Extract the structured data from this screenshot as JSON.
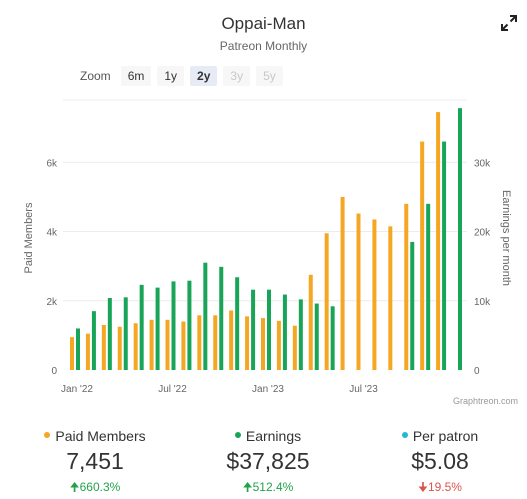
{
  "header": {
    "title": "Oppai-Man",
    "subtitle": "Patreon Monthly"
  },
  "zoom": {
    "label": "Zoom",
    "buttons": [
      {
        "label": "6m",
        "state": "normal"
      },
      {
        "label": "1y",
        "state": "normal"
      },
      {
        "label": "2y",
        "state": "active"
      },
      {
        "label": "3y",
        "state": "disabled"
      },
      {
        "label": "5y",
        "state": "disabled"
      }
    ]
  },
  "credit": "Graphtreon.com",
  "colors": {
    "members": "#f5a623",
    "earnings": "#18a558",
    "per_patron": "#23b7d6",
    "up": "#22a34a",
    "down": "#d9534f"
  },
  "chart_data": {
    "type": "bar",
    "x_tick_labels": [
      "Jan '22",
      "Jul '22",
      "Jan '23",
      "Jul '23"
    ],
    "x_tick_category_index": [
      0,
      6,
      12,
      18
    ],
    "ylabel_left": "Paid Members",
    "ylabel_right": "Earnings per month",
    "yticks_left": [
      "0",
      "2k",
      "4k",
      "6k"
    ],
    "yticks_left_values": [
      0,
      2000,
      4000,
      6000
    ],
    "yticks_right": [
      "0",
      "10k",
      "20k",
      "30k"
    ],
    "yticks_right_values": [
      0,
      10000,
      20000,
      30000
    ],
    "ylim_left": [
      0,
      7800
    ],
    "ylim_right": [
      0,
      39000
    ],
    "categories": [
      "2022-01",
      "2022-02",
      "2022-03",
      "2022-04",
      "2022-05",
      "2022-06",
      "2022-07",
      "2022-08",
      "2022-09",
      "2022-10",
      "2022-11",
      "2022-12",
      "2023-01",
      "2023-02",
      "2023-03",
      "2023-04",
      "2023-05",
      "2023-06",
      "2023-07",
      "2023-08",
      "2023-09",
      "2023-10",
      "2023-11",
      "2023-12",
      "2024-01"
    ],
    "series": [
      {
        "name": "Paid Members",
        "axis": "left",
        "values": [
          950,
          1050,
          1300,
          1250,
          1350,
          1450,
          1450,
          1400,
          1580,
          1580,
          1720,
          1550,
          1500,
          1420,
          1280,
          2750,
          3950,
          5000,
          4520,
          4350,
          4150,
          4800,
          6600,
          7451,
          null
        ]
      },
      {
        "name": "Earnings",
        "axis": "right",
        "values": [
          6000,
          8500,
          10400,
          10500,
          12300,
          11900,
          12800,
          12900,
          15500,
          14900,
          13400,
          11600,
          11600,
          10900,
          10200,
          9600,
          9200,
          null,
          null,
          null,
          null,
          18500,
          24000,
          33000,
          37825
        ]
      }
    ]
  },
  "stats": [
    {
      "label": "Paid Members",
      "value": "7,451",
      "change": "660.3%",
      "direction": "up",
      "color_key": "members"
    },
    {
      "label": "Earnings",
      "value": "$37,825",
      "change": "512.4%",
      "direction": "up",
      "color_key": "earnings"
    },
    {
      "label": "Per patron",
      "value": "$5.08",
      "change": "19.5%",
      "direction": "down",
      "color_key": "per_patron"
    }
  ]
}
